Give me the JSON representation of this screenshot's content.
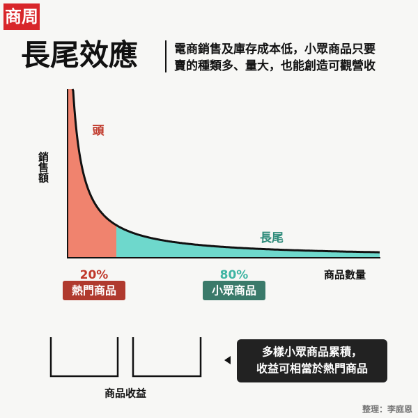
{
  "logo": "商周",
  "header": {
    "title": "長尾效應",
    "subtitle_lines": [
      "電商銷售及庫存成本低，小眾商品只要",
      "賣的種類多、量大，也能創造可觀營收"
    ]
  },
  "diagram": {
    "y_label": "銷售額",
    "head_label": "頭",
    "tail_label": "長尾",
    "x_label": "商品數量",
    "segments": [
      {
        "percent": "20%",
        "name": "熱門商品"
      },
      {
        "percent": "80%",
        "name": "小眾商品"
      }
    ]
  },
  "revenue": {
    "label": "商品收益",
    "note_lines": [
      "多樣小眾商品累積，",
      "收益可相當於熱門商品"
    ]
  },
  "credit": "整理：李庭恩"
}
